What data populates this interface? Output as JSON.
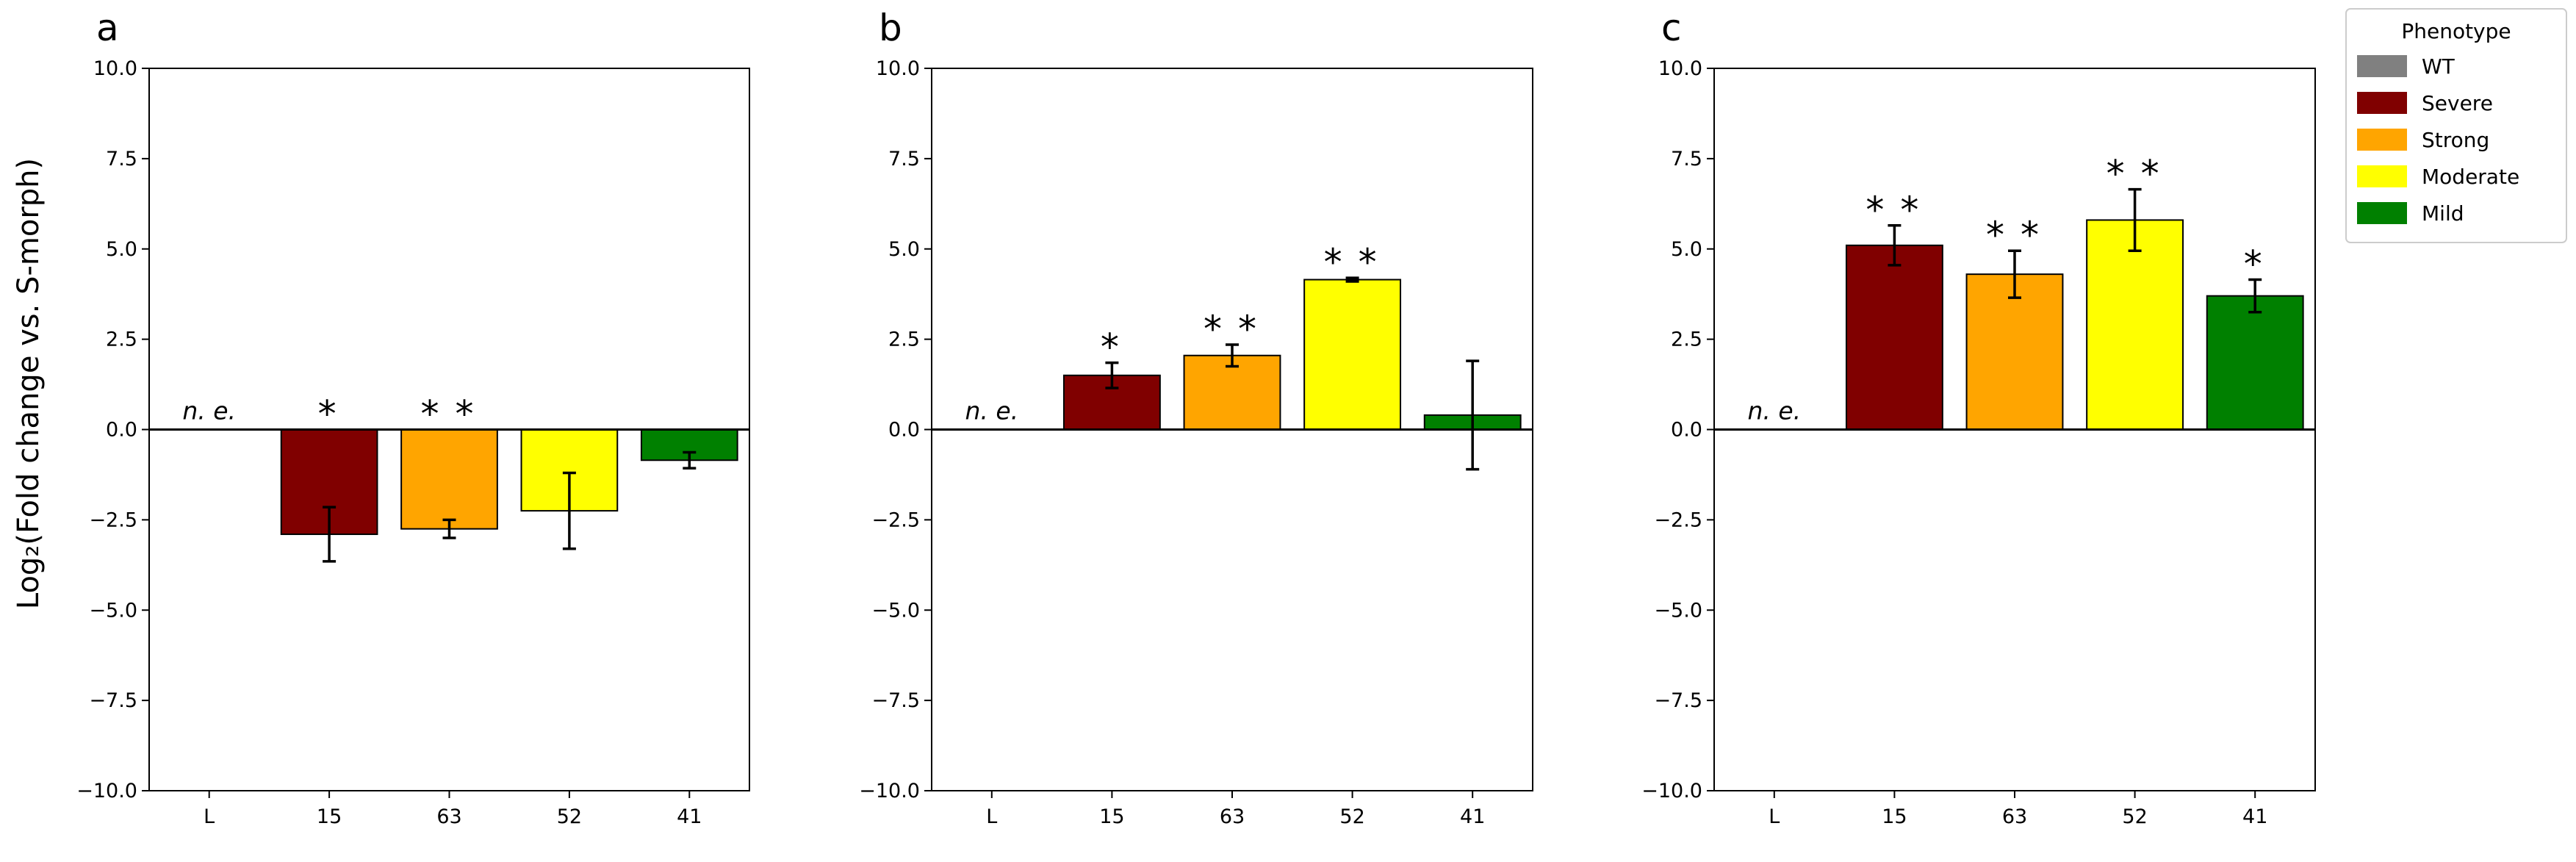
{
  "figure": {
    "ylabel": "Log₂(Fold change vs. S-morph)",
    "legend": {
      "title": "Phenotype",
      "entries": [
        {
          "label": "WT",
          "color": "#808080"
        },
        {
          "label": "Severe",
          "color": "#800000"
        },
        {
          "label": "Strong",
          "color": "#FFA500"
        },
        {
          "label": "Moderate",
          "color": "#FFFF00"
        },
        {
          "label": "Mild",
          "color": "#008000"
        }
      ]
    }
  },
  "chart_data": [
    {
      "type": "bar",
      "panel": "a",
      "categories": [
        "L",
        "15",
        "63",
        "52",
        "41"
      ],
      "values": [
        null,
        -2.9,
        -2.75,
        -2.25,
        -0.85
      ],
      "errors": [
        null,
        0.75,
        0.25,
        1.05,
        0.22
      ],
      "colors": [
        "#808080",
        "#800000",
        "#FFA500",
        "#FFFF00",
        "#008000"
      ],
      "annotations": [
        "n. e.",
        "*",
        "**",
        "",
        ""
      ],
      "ylim": [
        -10,
        10
      ],
      "yticks": [
        -10.0,
        -7.5,
        -5.0,
        -2.5,
        0.0,
        2.5,
        5.0,
        7.5,
        10.0
      ],
      "ytick_labels": [
        "−10.0",
        "−7.5",
        "−5.0",
        "−2.5",
        "0.0",
        "2.5",
        "5.0",
        "7.5",
        "10.0"
      ]
    },
    {
      "type": "bar",
      "panel": "b",
      "categories": [
        "L",
        "15",
        "63",
        "52",
        "41"
      ],
      "values": [
        null,
        1.5,
        2.05,
        4.15,
        0.4
      ],
      "errors": [
        null,
        0.35,
        0.3,
        0.05,
        1.5
      ],
      "colors": [
        "#808080",
        "#800000",
        "#FFA500",
        "#FFFF00",
        "#008000"
      ],
      "annotations": [
        "n. e.",
        "*",
        "**",
        "**",
        ""
      ],
      "ylim": [
        -10,
        10
      ],
      "yticks": [
        -10.0,
        -7.5,
        -5.0,
        -2.5,
        0.0,
        2.5,
        5.0,
        7.5,
        10.0
      ],
      "ytick_labels": [
        "−10.0",
        "−7.5",
        "−5.0",
        "−2.5",
        "0.0",
        "2.5",
        "5.0",
        "7.5",
        "10.0"
      ]
    },
    {
      "type": "bar",
      "panel": "c",
      "categories": [
        "L",
        "15",
        "63",
        "52",
        "41"
      ],
      "values": [
        null,
        5.1,
        4.3,
        5.8,
        3.7
      ],
      "errors": [
        null,
        0.55,
        0.65,
        0.85,
        0.45
      ],
      "colors": [
        "#808080",
        "#800000",
        "#FFA500",
        "#FFFF00",
        "#008000"
      ],
      "annotations": [
        "n. e.",
        "**",
        "**",
        "**",
        "*"
      ],
      "ylim": [
        -10,
        10
      ],
      "yticks": [
        -10.0,
        -7.5,
        -5.0,
        -2.5,
        0.0,
        2.5,
        5.0,
        7.5,
        10.0
      ],
      "ytick_labels": [
        "−10.0",
        "−7.5",
        "−5.0",
        "−2.5",
        "0.0",
        "2.5",
        "5.0",
        "7.5",
        "10.0"
      ]
    }
  ]
}
